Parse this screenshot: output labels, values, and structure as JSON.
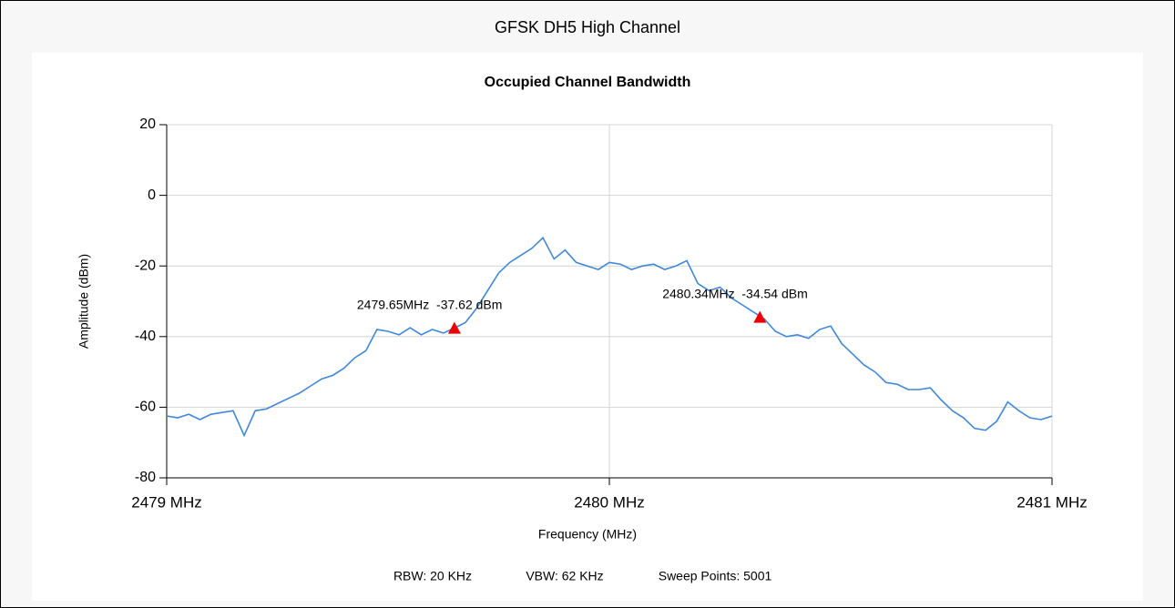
{
  "chart_data": {
    "type": "line",
    "header": "GFSK DH5 High Channel",
    "title": "Occupied Channel Bandwidth",
    "xlabel": "Frequency (MHz)",
    "ylabel": "Amplitude (dBm)",
    "footer": [
      "RBW: 20 KHz",
      "VBW: 62 KHz",
      "Sweep Points: 5001"
    ],
    "xlim": [
      2479,
      2481
    ],
    "xticks": [
      {
        "value": 2479,
        "label": "2479 MHz"
      },
      {
        "value": 2480,
        "label": "2480 MHz"
      },
      {
        "value": 2481,
        "label": "2481 MHz"
      }
    ],
    "ylim": [
      -80,
      20
    ],
    "yticks": [
      -80,
      -60,
      -40,
      -20,
      0,
      20
    ],
    "grid": true,
    "x": [
      2479,
      2479.025,
      2479.05,
      2479.075,
      2479.1,
      2479.125,
      2479.15,
      2479.175,
      2479.2,
      2479.225,
      2479.25,
      2479.275,
      2479.3,
      2479.325,
      2479.35,
      2479.375,
      2479.4,
      2479.425,
      2479.45,
      2479.475,
      2479.5,
      2479.525,
      2479.55,
      2479.575,
      2479.6,
      2479.625,
      2479.65,
      2479.675,
      2479.7,
      2479.725,
      2479.75,
      2479.775,
      2479.8,
      2479.825,
      2479.85,
      2479.875,
      2479.9,
      2479.925,
      2479.95,
      2479.975,
      2480,
      2480.025,
      2480.05,
      2480.075,
      2480.1,
      2480.125,
      2480.15,
      2480.175,
      2480.2,
      2480.225,
      2480.25,
      2480.275,
      2480.3,
      2480.325,
      2480.35,
      2480.375,
      2480.4,
      2480.425,
      2480.45,
      2480.475,
      2480.5,
      2480.525,
      2480.55,
      2480.575,
      2480.6,
      2480.625,
      2480.65,
      2480.675,
      2480.7,
      2480.725,
      2480.75,
      2480.775,
      2480.8,
      2480.825,
      2480.85,
      2480.875,
      2480.9,
      2480.925,
      2480.95,
      2480.975,
      2481
    ],
    "series": [
      {
        "color": "#3f88dc",
        "values": [
          -62.5,
          -63,
          -62,
          -63.5,
          -62,
          -61.5,
          -61,
          -68,
          -61,
          -60.5,
          -59,
          -57.5,
          -56,
          -54,
          -52,
          -51,
          -49,
          -46,
          -44,
          -38,
          -38.5,
          -39.5,
          -37.5,
          -39.5,
          -38,
          -39,
          -37.6,
          -36,
          -32,
          -27,
          -22,
          -19,
          -17,
          -15,
          -12,
          -18,
          -15.5,
          -19,
          -20,
          -21,
          -19,
          -19.5,
          -21,
          -20,
          -19.5,
          -21,
          -20,
          -18.5,
          -25,
          -27,
          -26,
          -29,
          -31,
          -33,
          -35,
          -38.5,
          -40,
          -39.5,
          -40.5,
          -38,
          -37,
          -42,
          -45,
          -48,
          -50,
          -53,
          -53.5,
          -55,
          -55,
          -54.5,
          -58,
          -61,
          -63,
          -66,
          -66.5,
          -64,
          -58.5,
          -61,
          -63,
          -63.5,
          -62.5
        ]
      }
    ],
    "markers": [
      {
        "x": 2479.65,
        "y": -37.62,
        "label": "2479.65MHz  -37.62 dBm",
        "color": "#ee0000"
      },
      {
        "x": 2480.34,
        "y": -34.54,
        "label": "2480.34MHz  -34.54 dBm",
        "color": "#ee0000"
      }
    ]
  }
}
